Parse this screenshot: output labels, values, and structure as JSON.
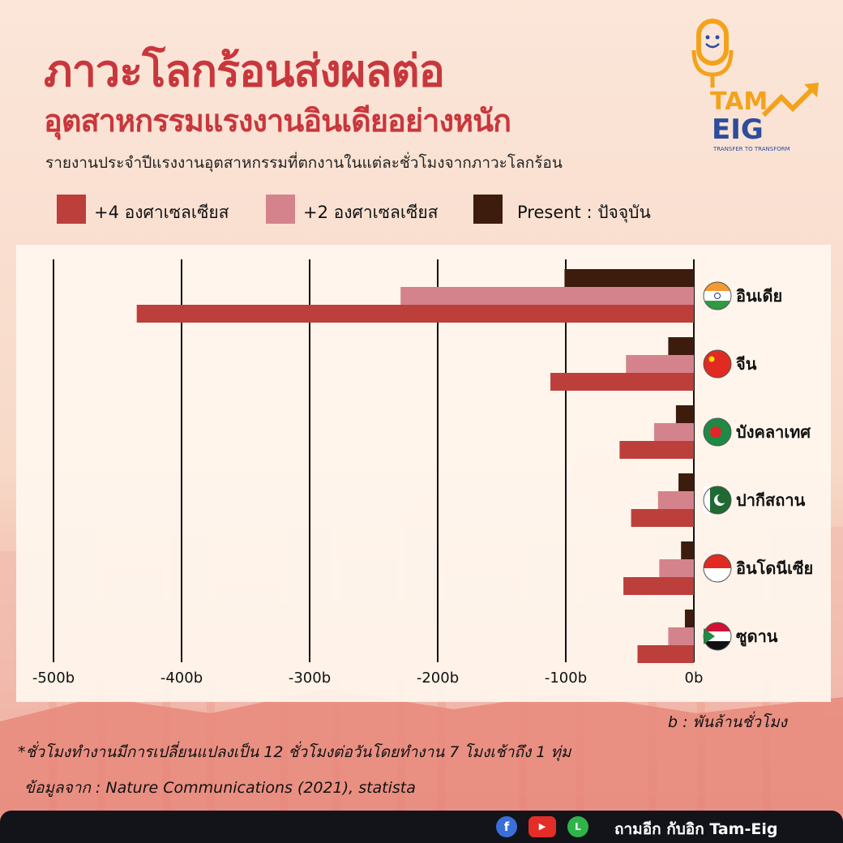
{
  "header": {
    "title_line1": "ภาวะโลกร้อนส่งผลต่อ",
    "title_line2": "อุตสาหกรรมแรงงานอินเดียอย่างหนัก",
    "subtitle": "รายงานประจำปีแรงงานอุตสาหกรรมที่ตกงานในแต่ละชั่วโมงจากภาวะโลกร้อน"
  },
  "logo": {
    "line1": "TAM",
    "line2": "EIG",
    "tagline": "TRANSFER TO TRANSFORM"
  },
  "chart_data": {
    "type": "bar",
    "orientation": "horizontal",
    "categories": [
      "อินเดีย",
      "จีน",
      "บังคลาเทศ",
      "ปากีสถาน",
      "อินโดนีเซีย",
      "ซูดาน"
    ],
    "series": [
      {
        "name": "Present : ปัจจุบัน",
        "color": "#3d1c0e",
        "values": [
          -101,
          -20,
          -14,
          -12,
          -10,
          -7
        ]
      },
      {
        "name": "+2 องศาเซลเซียส",
        "color": "#d4838c",
        "values": [
          -229,
          -53,
          -31,
          -28,
          -27,
          -20
        ]
      },
      {
        "name": "+4 องศาเซลเซียส",
        "color": "#bc3f3c",
        "values": [
          -435,
          -112,
          -58,
          -49,
          -55,
          -44
        ]
      }
    ],
    "legend_order": [
      "+4 องศาเซลเซียส",
      "+2 องศาเซลเซียส",
      "Present : ปัจจุบัน"
    ],
    "xlim": [
      -500,
      0
    ],
    "x_ticks": [
      -500,
      -400,
      -300,
      -200,
      -100,
      0
    ],
    "x_tick_labels": [
      "-500b",
      "-400b",
      "-300b",
      "-200b",
      "-100b",
      "0b"
    ],
    "grid": "vertical lines",
    "legend_position": "top"
  },
  "notes": {
    "unit": "b : พันล้านชั่วโมง",
    "footnote": "*ชั่วโมงทำงานมีการเปลี่ยนแปลงเป็น 12 ชั่วโมงต่อวันโดยทำงาน 7 โมงเช้าถึง 1 ทุ่ม",
    "source": "ข้อมูลจาก : Nature Communications (2021), statista"
  },
  "footer": {
    "text": "ถามอีก กับอิก Tam-Eig",
    "icons": [
      "facebook-icon",
      "youtube-icon",
      "line-icon"
    ]
  },
  "colors": {
    "title": "#c8373c",
    "plus4": "#bc3f3c",
    "plus2": "#d4838c",
    "present": "#3d1c0e"
  }
}
